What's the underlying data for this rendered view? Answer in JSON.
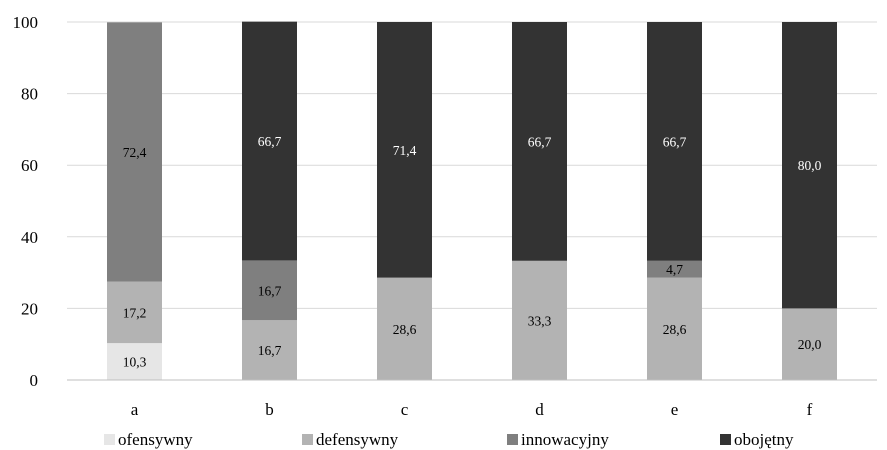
{
  "chart_data": {
    "type": "bar",
    "stacked": true,
    "categories": [
      "a",
      "b",
      "c",
      "d",
      "e",
      "f"
    ],
    "ylim": [
      0,
      100
    ],
    "yticks": [
      0,
      20,
      40,
      60,
      80,
      100
    ],
    "grid": true,
    "legend_position": "bottom",
    "series": [
      {
        "name": "ofensywny",
        "color": "#e6e6e6",
        "label_color": "#000000",
        "values": [
          10.3,
          0,
          0,
          0,
          0,
          0
        ]
      },
      {
        "name": "defensywny",
        "color": "#b3b3b3",
        "label_color": "#000000",
        "values": [
          17.2,
          16.7,
          28.6,
          33.3,
          28.6,
          20.0
        ]
      },
      {
        "name": "innowacyjny",
        "color": "#7f7f7f",
        "label_color": "#000000",
        "values": [
          72.4,
          16.7,
          0,
          0,
          4.7,
          0
        ]
      },
      {
        "name": "obojętny",
        "color": "#333333",
        "label_color": "#ffffff",
        "values": [
          0,
          66.7,
          71.4,
          66.7,
          66.7,
          80.0
        ]
      }
    ]
  }
}
